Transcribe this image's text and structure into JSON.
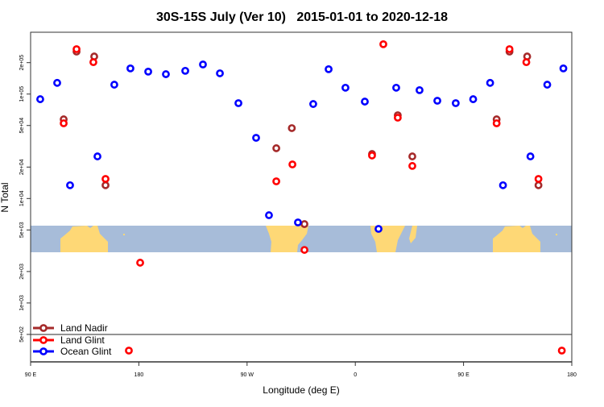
{
  "chart_data": {
    "type": "scatter",
    "title": "30S-15S July (Ver 10)   2015-01-01 to 2020-12-18",
    "xlabel": "Longitude (deg E)",
    "ylabel": "N Total",
    "x_ticks": [
      "90 E",
      "180",
      "90 W",
      "0",
      "90 E",
      "180"
    ],
    "y_ticks": [
      {
        "value": 200000,
        "label": "2e+05"
      },
      {
        "value": 100000,
        "label": "1e+05"
      },
      {
        "value": 50000,
        "label": "5e+04"
      },
      {
        "value": 20000,
        "label": "2e+04"
      },
      {
        "value": 10000,
        "label": "1e+04"
      },
      {
        "value": 5000,
        "label": "5e+03"
      },
      {
        "value": 2000,
        "label": "2e+03"
      },
      {
        "value": 1000,
        "label": "1e+03"
      },
      {
        "value": 500,
        "label": "5e+02"
      }
    ],
    "xlim": [
      "90 E",
      "180 (wrapped, 90 E to 180 shown twice)"
    ],
    "ylog": true,
    "ylim": [
      270,
      390000
    ],
    "grid": false,
    "legend_position": "bottom-left",
    "map_strip": {
      "colors": {
        "ocean": "#a7bcd9",
        "land": "#fed876"
      }
    },
    "series": [
      {
        "name": "Land Nadir",
        "color": "#a52a2a",
        "points": [
          {
            "lon": 117.5,
            "n": 57300
          },
          {
            "lon": 128.2,
            "n": 255000
          },
          {
            "lon": 142.9,
            "n": 229000
          },
          {
            "lon": 152.3,
            "n": 13400
          },
          {
            "lon": -65.7,
            "n": 30300
          },
          {
            "lon": -52.8,
            "n": 47200
          },
          {
            "lon": -42.3,
            "n": 5690
          },
          {
            "lon": 13.9,
            "n": 26700
          },
          {
            "lon": 35.3,
            "n": 62700
          },
          {
            "lon": 47.4,
            "n": 25300
          }
        ]
      },
      {
        "name": "Land Glint",
        "color": "#ff0000",
        "points": [
          {
            "lon": 117.5,
            "n": 52500
          },
          {
            "lon": 128.2,
            "n": 269000
          },
          {
            "lon": 142.2,
            "n": 202000
          },
          {
            "lon": 152.3,
            "n": 15400
          },
          {
            "lon": 171.7,
            "n": 350
          },
          {
            "lon": -178.9,
            "n": 2430
          },
          {
            "lon": -65.7,
            "n": 14600
          },
          {
            "lon": -52.3,
            "n": 21200
          },
          {
            "lon": -42.3,
            "n": 3220
          },
          {
            "lon": 13.9,
            "n": 25800
          },
          {
            "lon": 23.3,
            "n": 300000
          },
          {
            "lon": 35.3,
            "n": 59400
          },
          {
            "lon": 47.4,
            "n": 20500
          }
        ]
      },
      {
        "name": "Ocean Glint",
        "color": "#0000ff",
        "points": [
          {
            "lon": 98.0,
            "n": 89300
          },
          {
            "lon": 112.1,
            "n": 128000
          },
          {
            "lon": 122.8,
            "n": 13400
          },
          {
            "lon": 145.6,
            "n": 25300
          },
          {
            "lon": 159.6,
            "n": 123000
          },
          {
            "lon": 173.0,
            "n": 176000
          },
          {
            "lon": -172.2,
            "n": 164000
          },
          {
            "lon": -157.5,
            "n": 155000
          },
          {
            "lon": -141.4,
            "n": 167000
          },
          {
            "lon": -126.7,
            "n": 192000
          },
          {
            "lon": -112.6,
            "n": 158000
          },
          {
            "lon": -97.2,
            "n": 81800
          },
          {
            "lon": -82.5,
            "n": 38100
          },
          {
            "lon": -71.8,
            "n": 6920
          },
          {
            "lon": -47.7,
            "n": 5900
          },
          {
            "lon": -35.0,
            "n": 80300
          },
          {
            "lon": -22.2,
            "n": 173000
          },
          {
            "lon": -8.2,
            "n": 115000
          },
          {
            "lon": 7.9,
            "n": 84700
          },
          {
            "lon": 19.3,
            "n": 5120
          },
          {
            "lon": 34.0,
            "n": 115000
          },
          {
            "lon": 53.4,
            "n": 109000
          },
          {
            "lon": 68.2,
            "n": 86300
          },
          {
            "lon": 83.5,
            "n": 81800
          }
        ]
      }
    ]
  }
}
